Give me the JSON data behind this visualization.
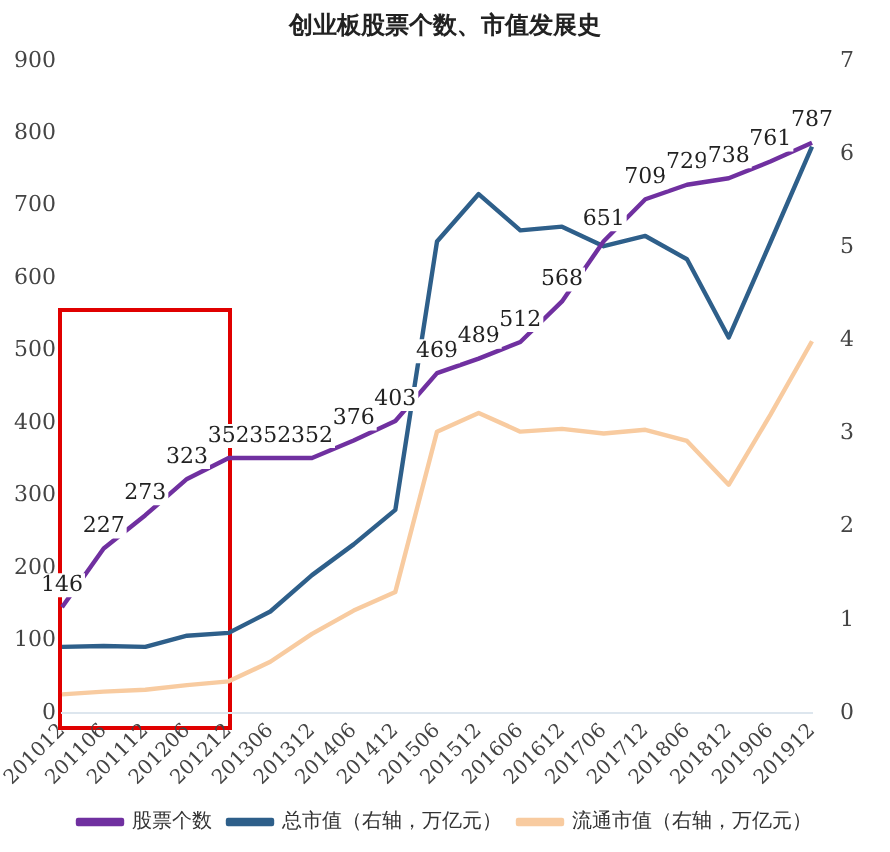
{
  "chart_data": {
    "type": "line",
    "title": "创业板股票个数、市值发展史",
    "categories": [
      "201012",
      "201106",
      "201112",
      "201206",
      "201212",
      "201306",
      "201312",
      "201406",
      "201412",
      "201506",
      "201512",
      "201606",
      "201612",
      "201706",
      "201712",
      "201806",
      "201812",
      "201906",
      "201912"
    ],
    "series": [
      {
        "name": "股票个数",
        "color": "#7030a0",
        "values": [
          146,
          227,
          273,
          323,
          352,
          352,
          352,
          376,
          403,
          469,
          489,
          512,
          568,
          651,
          709,
          729,
          738,
          761,
          787
        ],
        "value_labels": [
          "146",
          "227",
          "273",
          "323",
          "352",
          "352",
          "352",
          "376",
          "403",
          "469",
          "489",
          "512",
          "568",
          "651",
          "709",
          "729",
          "738",
          "761",
          "787"
        ]
      },
      {
        "name": "总市值（右轴，万亿元）",
        "color": "#2e5f8a",
        "axis": "y2",
        "values": [
          0.71,
          0.72,
          0.71,
          0.83,
          0.86,
          1.09,
          1.48,
          1.81,
          2.18,
          5.06,
          5.57,
          5.18,
          5.22,
          5.01,
          5.12,
          4.87,
          4.03,
          5.05,
          6.08
        ]
      },
      {
        "name": "流通市值（右轴，万亿元）",
        "color": "#f8cba0",
        "axis": "y2",
        "values": [
          0.2,
          0.23,
          0.25,
          0.3,
          0.34,
          0.55,
          0.85,
          1.1,
          1.3,
          3.02,
          3.22,
          3.02,
          3.05,
          3.0,
          3.04,
          2.92,
          2.45,
          3.2,
          3.99
        ]
      }
    ],
    "ylim": [
      0,
      900
    ],
    "yticks": [
      0,
      100,
      200,
      300,
      400,
      500,
      600,
      700,
      800,
      900
    ],
    "y2lim": [
      0,
      7
    ],
    "y2ticks": [
      0,
      1,
      2,
      3,
      4,
      5,
      6,
      7
    ],
    "grid": false,
    "legend": "bottom",
    "marker": "none",
    "line_style": "solid"
  }
}
